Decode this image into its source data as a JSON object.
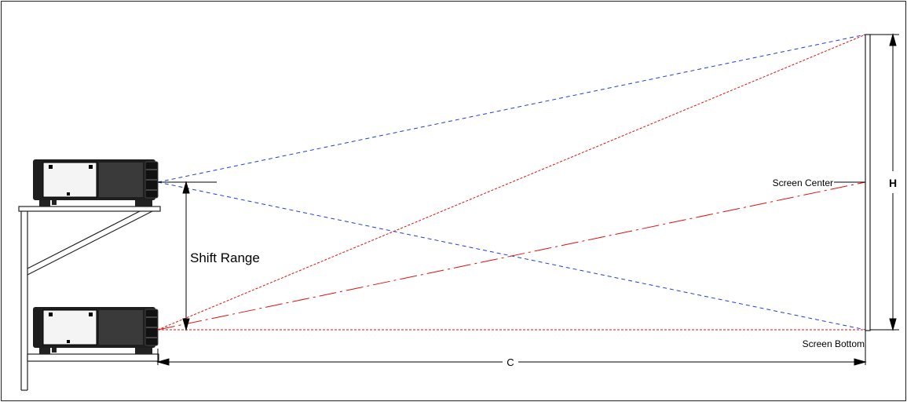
{
  "labels": {
    "shift_range": "Shift Range",
    "screen_center": "Screen Center",
    "screen_bottom": "Screen Bottom",
    "distance": "C",
    "height": "H"
  },
  "colors": {
    "upper_beam": "#1f3fd6",
    "lower_beam": "#e01010",
    "outline": "#000000",
    "projector_body": "#1e1e1e",
    "grille": "#3a3a3a",
    "panel": "#f4f4f4"
  },
  "line_styles": {
    "upper_projector_beams": "blue dashed",
    "lower_projector_beams": "red dotted",
    "center_axis": "red dash-dot"
  }
}
